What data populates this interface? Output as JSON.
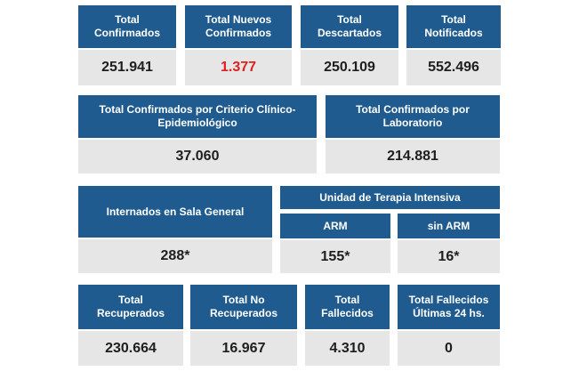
{
  "row1": [
    {
      "label": "Total\nConfirmados",
      "value": "251.941"
    },
    {
      "label": "Total Nuevos\nConfirmados",
      "value": "1.377"
    },
    {
      "label": "Total\nDescartados",
      "value": "250.109"
    },
    {
      "label": "Total\nNotificados",
      "value": "552.496"
    }
  ],
  "row2": [
    {
      "label": "Total Confirmados por Criterio Clínico-\nEpidemiológico",
      "value": "37.060"
    },
    {
      "label": "Total Confirmados por\nLaboratorio",
      "value": "214.881"
    }
  ],
  "row3": {
    "sala": {
      "label": "Internados en Sala General",
      "value": "288*"
    },
    "uti_title": "Unidad de Terapia Intensiva",
    "arm": {
      "label": "ARM",
      "value": "155*"
    },
    "sin_arm": {
      "label": "sin ARM",
      "value": "16*"
    }
  },
  "row4": [
    {
      "label": "Total\nRecuperados",
      "value": "230.664"
    },
    {
      "label": "Total No\nRecuperados",
      "value": "16.967"
    },
    {
      "label": "Total\nFallecidos",
      "value": "4.310"
    },
    {
      "label": "Total Fallecidos\nÚltimas 24 hs.",
      "value": "0"
    }
  ],
  "colors": {
    "header_bg": "#1f5b8f",
    "value_bg": "#e6e6e6",
    "highlight": "#e01f1f"
  }
}
